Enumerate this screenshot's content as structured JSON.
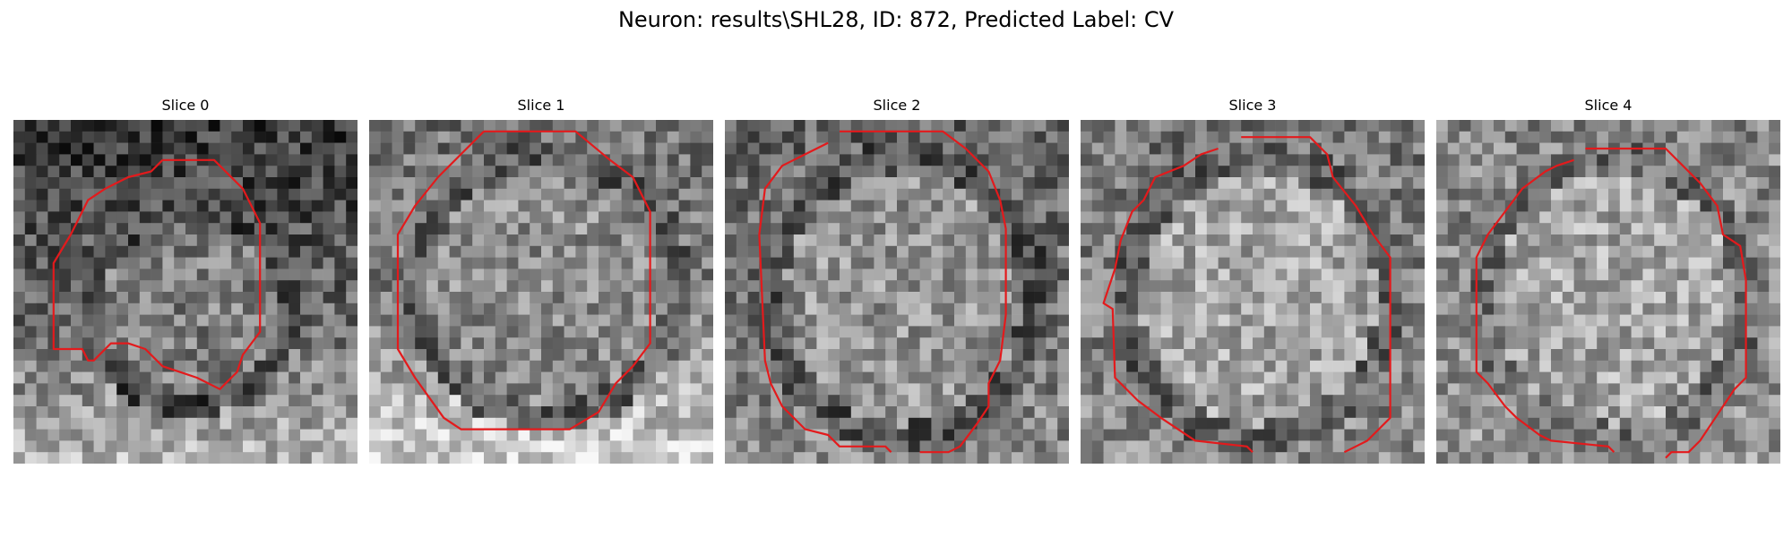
{
  "figure": {
    "title": "Neuron: results\\SHL28, ID: 872, Predicted Label: CV"
  },
  "panels": [
    {
      "title": "Slice 0"
    },
    {
      "title": "Slice 1"
    },
    {
      "title": "Slice 2"
    },
    {
      "title": "Slice 3"
    },
    {
      "title": "Slice 4"
    }
  ],
  "colors": {
    "contour": "#e31a1c",
    "background": "#ffffff"
  }
}
